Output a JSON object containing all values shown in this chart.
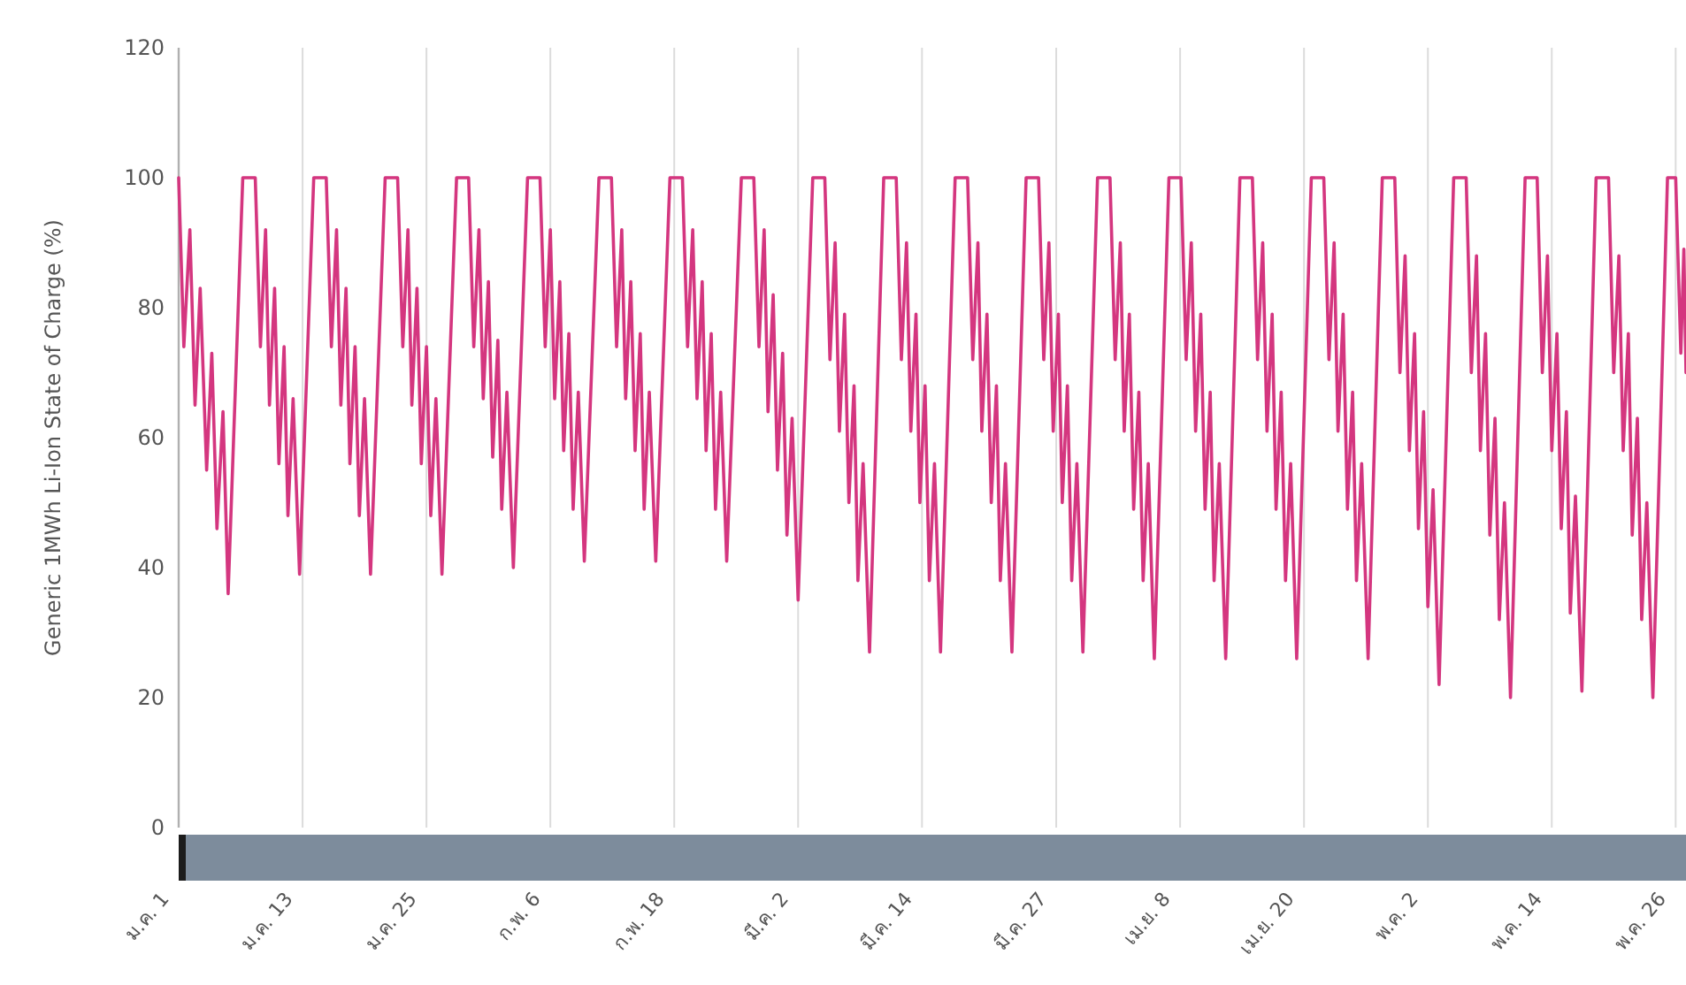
{
  "chart_data": {
    "type": "line",
    "ylabel": "Generic 1MWh Li-Ion State of Charge (%)",
    "ylim": [
      0,
      120
    ],
    "yticks": [
      0,
      20,
      40,
      60,
      80,
      100,
      120
    ],
    "xlim": [
      "--01-01T00:00",
      "--05-27T00:00"
    ],
    "xticks": [
      {
        "value": "--01-01",
        "label": "ม.ค. 1"
      },
      {
        "value": "--01-13",
        "label": "ม.ค. 13"
      },
      {
        "value": "--01-25",
        "label": "ม.ค. 25"
      },
      {
        "value": "--02-06",
        "label": "ก.พ. 6"
      },
      {
        "value": "--02-18",
        "label": "ก.พ. 18"
      },
      {
        "value": "--03-02",
        "label": "มี.ค. 2"
      },
      {
        "value": "--03-14",
        "label": "มี.ค. 14"
      },
      {
        "value": "--03-27",
        "label": "มี.ค. 27"
      },
      {
        "value": "--04-08",
        "label": "เม.ย. 8"
      },
      {
        "value": "--04-20",
        "label": "เม.ย. 20"
      },
      {
        "value": "--05-02",
        "label": "พ.ค. 2"
      },
      {
        "value": "--05-14",
        "label": "พ.ค. 14"
      },
      {
        "value": "--05-26",
        "label": "พ.ค. 26"
      }
    ],
    "grid": "x",
    "marker": "none",
    "line_style": "solid",
    "series": [
      {
        "color": "#d4367f",
        "x": [
          "--01-01T00:00",
          "--01-01T12:00",
          "--01-02T02:00",
          "--01-02T14:00",
          "--01-03T02:00",
          "--01-03T17:00",
          "--01-04T05:00",
          "--01-04T17:00",
          "--01-05T07:00",
          "--01-05T19:00",
          "--01-07T05:00",
          "--01-08T10:00",
          "--01-08T22:00",
          "--01-09T10:00",
          "--01-09T19:00",
          "--01-10T07:00",
          "--01-10T17:00",
          "--01-11T05:00",
          "--01-11T14:00",
          "--01-12T02:00",
          "--01-12T17:00",
          "--01-14T02:00",
          "--01-15T07:00",
          "--01-15T19:00",
          "--01-16T07:00",
          "--01-16T17:00",
          "--01-17T05:00",
          "--01-17T14:00",
          "--01-18T02:00",
          "--01-18T12:00",
          "--01-19T00:00",
          "--01-19T14:00",
          "--01-21T00:00",
          "--01-22T05:00",
          "--01-22T17:00",
          "--01-23T05:00",
          "--01-23T14:00",
          "--01-24T02:00",
          "--01-24T12:00",
          "--01-25T00:00",
          "--01-25T10:00",
          "--01-25T22:00",
          "--01-26T12:00",
          "--01-27T22:00",
          "--01-29T02:00",
          "--01-29T14:00",
          "--01-30T02:00",
          "--01-30T12:00",
          "--01-31T00:00",
          "--01-31T10:00",
          "--01-31T22:00",
          "--02-01T07:00",
          "--02-01T19:00",
          "--02-02T10:00",
          "--02-03T19:00",
          "--02-05T00:00",
          "--02-05T12:00",
          "--02-06T00:00",
          "--02-06T10:00",
          "--02-06T22:00",
          "--02-07T07:00",
          "--02-07T19:00",
          "--02-08T05:00",
          "--02-08T17:00",
          "--02-09T07:00",
          "--02-10T17:00",
          "--02-11T22:00",
          "--02-12T10:00",
          "--02-12T22:00",
          "--02-13T07:00",
          "--02-13T19:00",
          "--02-14T05:00",
          "--02-14T17:00",
          "--02-15T02:00",
          "--02-15T14:00",
          "--02-16T05:00",
          "--02-17T14:00",
          "--02-18T19:00",
          "--02-19T07:00",
          "--02-19T19:00",
          "--02-20T05:00",
          "--02-20T17:00",
          "--02-21T02:00",
          "--02-21T14:00",
          "--02-22T00:00",
          "--02-22T12:00",
          "--02-23T02:00",
          "--02-24T12:00",
          "--02-25T17:00",
          "--02-26T05:00",
          "--02-26T17:00",
          "--02-27T02:00",
          "--02-27T14:00",
          "--02-28T00:00",
          "--02-28T12:00",
          "--02-28T22:00",
          "--03-01T10:00",
          "--03-02T00:00",
          "--03-03T10:00",
          "--03-04T14:00",
          "--03-05T02:00",
          "--03-05T14:00",
          "--03-06T00:00",
          "--03-06T12:00",
          "--03-06T22:00",
          "--03-07T10:00",
          "--03-07T19:00",
          "--03-08T07:00",
          "--03-08T22:00",
          "--03-10T07:00",
          "--03-11T12:00",
          "--03-12T00:00",
          "--03-12T12:00",
          "--03-12T22:00",
          "--03-13T10:00",
          "--03-13T19:00",
          "--03-14T07:00",
          "--03-14T17:00",
          "--03-15T05:00",
          "--03-15T19:00",
          "--03-17T05:00",
          "--03-18T10:00",
          "--03-18T22:00",
          "--03-19T10:00",
          "--03-19T19:00",
          "--03-20T07:00",
          "--03-20T17:00",
          "--03-21T05:00",
          "--03-21T14:00",
          "--03-22T02:00",
          "--03-22T17:00",
          "--03-24T02:00",
          "--03-25T07:00",
          "--03-25T19:00",
          "--03-26T07:00",
          "--03-26T17:00",
          "--03-27T05:00",
          "--03-27T14:00",
          "--03-28T02:00",
          "--03-28T12:00",
          "--03-29T00:00",
          "--03-29T14:00",
          "--03-31T00:00",
          "--04-01T05:00",
          "--04-01T17:00",
          "--04-02T05:00",
          "--04-02T14:00",
          "--04-03T02:00",
          "--04-03T12:00",
          "--04-04T00:00",
          "--04-04T10:00",
          "--04-04T22:00",
          "--04-05T12:00",
          "--04-06T22:00",
          "--04-08T02:00",
          "--04-08T14:00",
          "--04-09T02:00",
          "--04-09T12:00",
          "--04-10T00:00",
          "--04-10T10:00",
          "--04-10T22:00",
          "--04-11T07:00",
          "--04-11T19:00",
          "--04-12T10:00",
          "--04-13T19:00",
          "--04-15T00:00",
          "--04-15T12:00",
          "--04-16T00:00",
          "--04-16T10:00",
          "--04-16T22:00",
          "--04-17T07:00",
          "--04-17T19:00",
          "--04-18T05:00",
          "--04-18T17:00",
          "--04-19T07:00",
          "--04-20T17:00",
          "--04-21T22:00",
          "--04-22T10:00",
          "--04-22T22:00",
          "--04-23T07:00",
          "--04-23T19:00",
          "--04-24T05:00",
          "--04-24T17:00",
          "--04-25T02:00",
          "--04-25T14:00",
          "--04-26T05:00",
          "--04-27T14:00",
          "--04-28T19:00",
          "--04-29T07:00",
          "--04-29T19:00",
          "--04-30T05:00",
          "--04-30T17:00",
          "--05-01T02:00",
          "--05-01T14:00",
          "--05-02T00:00",
          "--05-02T12:00",
          "--05-03T02:00",
          "--05-04T12:00",
          "--05-05T17:00",
          "--05-06T05:00",
          "--05-06T17:00",
          "--05-07T02:00",
          "--05-07T14:00",
          "--05-08T00:00",
          "--05-08T12:00",
          "--05-08T22:00",
          "--05-09T10:00",
          "--05-10T00:00",
          "--05-11T10:00",
          "--05-12T14:00",
          "--05-13T02:00",
          "--05-13T14:00",
          "--05-14T00:00",
          "--05-14T12:00",
          "--05-14T22:00",
          "--05-15T10:00",
          "--05-15T19:00",
          "--05-16T07:00",
          "--05-16T22:00",
          "--05-18T07:00",
          "--05-19T12:00",
          "--05-20T00:00",
          "--05-20T12:00",
          "--05-20T22:00",
          "--05-21T10:00",
          "--05-21T19:00",
          "--05-22T07:00",
          "--05-22T17:00",
          "--05-23T05:00",
          "--05-23T19:00",
          "--05-25T05:00",
          "--05-26T00:00",
          "--05-26T12:00",
          "--05-26T19:00",
          "--05-27T00:00"
        ],
        "values": [
          100,
          74,
          92,
          65,
          83,
          55,
          73,
          46,
          64,
          36,
          100,
          100,
          74,
          92,
          65,
          83,
          56,
          74,
          48,
          66,
          39,
          100,
          100,
          74,
          92,
          65,
          83,
          56,
          74,
          48,
          66,
          39,
          100,
          100,
          74,
          92,
          65,
          83,
          56,
          74,
          48,
          66,
          39,
          100,
          100,
          74,
          92,
          66,
          84,
          57,
          75,
          49,
          67,
          40,
          100,
          100,
          74,
          92,
          66,
          84,
          58,
          76,
          49,
          67,
          41,
          100,
          100,
          74,
          92,
          66,
          84,
          58,
          76,
          49,
          67,
          41,
          100,
          100,
          74,
          92,
          66,
          84,
          58,
          76,
          49,
          67,
          41,
          100,
          100,
          74,
          92,
          64,
          82,
          55,
          73,
          45,
          63,
          35,
          100,
          100,
          72,
          90,
          61,
          79,
          50,
          68,
          38,
          56,
          27,
          100,
          100,
          72,
          90,
          61,
          79,
          50,
          68,
          38,
          56,
          27,
          100,
          100,
          72,
          90,
          61,
          79,
          50,
          68,
          38,
          56,
          27,
          100,
          100,
          72,
          90,
          61,
          79,
          50,
          68,
          38,
          56,
          27,
          100,
          100,
          72,
          90,
          61,
          79,
          49,
          67,
          38,
          56,
          26,
          100,
          100,
          72,
          90,
          61,
          79,
          49,
          67,
          38,
          56,
          26,
          100,
          100,
          72,
          90,
          61,
          79,
          49,
          67,
          38,
          56,
          26,
          100,
          100,
          72,
          90,
          61,
          79,
          49,
          67,
          38,
          56,
          26,
          100,
          100,
          70,
          88,
          58,
          76,
          46,
          64,
          34,
          52,
          22,
          100,
          100,
          70,
          88,
          58,
          76,
          45,
          63,
          32,
          50,
          20,
          100,
          100,
          70,
          88,
          58,
          76,
          46,
          64,
          33,
          51,
          21,
          100,
          100,
          70,
          88,
          58,
          76,
          45,
          63,
          32,
          50,
          20,
          100,
          100,
          73,
          89,
          70
        ]
      }
    ]
  }
}
